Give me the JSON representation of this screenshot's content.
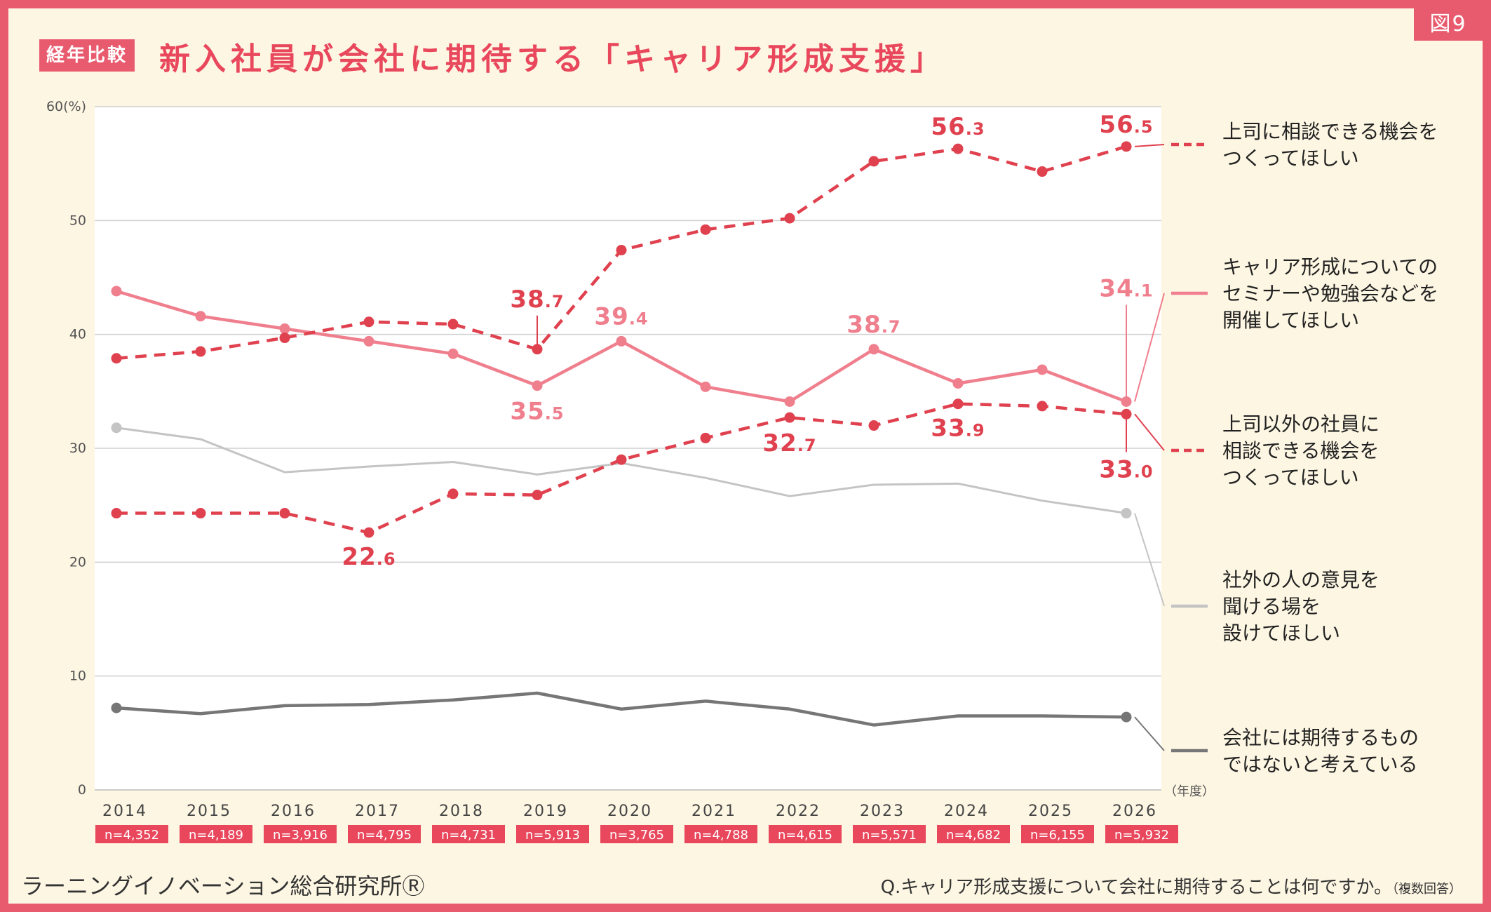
{
  "header": {
    "figure_label": "図9",
    "category_badge": "経年比較",
    "title": "新入社員が会社に期待する「キャリア形成支援」"
  },
  "footer": {
    "source": "ラーニングイノベーション総合研究所Ⓡ",
    "question": "Q.キャリア形成支援について会社に期待することは何ですか。",
    "question_note": "（複数回答）"
  },
  "colors": {
    "frame": "#e85b6e",
    "background": "#fdf6e3",
    "red_dashed": "#e0414f",
    "pink": "#f07f8e",
    "light_gray": "#c4c4c4",
    "dark_gray": "#767676"
  },
  "chart_data": {
    "type": "line",
    "y_unit_label": "(%)",
    "x_unit_label": "（年度）",
    "ylim": [
      0,
      60
    ],
    "yticks": [
      0,
      10,
      20,
      30,
      40,
      50,
      60
    ],
    "grid": true,
    "legend_placement": "right",
    "x": [
      "2014",
      "2015",
      "2016",
      "2017",
      "2018",
      "2019",
      "2020",
      "2021",
      "2022",
      "2023",
      "2024",
      "2025",
      "2026"
    ],
    "sample_sizes": [
      "n=4,352",
      "n=4,189",
      "n=3,916",
      "n=4,795",
      "n=4,731",
      "n=5,913",
      "n=3,765",
      "n=4,788",
      "n=4,615",
      "n=5,571",
      "n=4,682",
      "n=6,155",
      "n=5,932"
    ],
    "series": [
      {
        "key": "boss",
        "name": "上司に相談できる機会をつくってほしい",
        "name_lines": [
          "上司に相談できる機会を",
          "つくってほしい"
        ],
        "style": "dashed",
        "color": "#e0414f",
        "values": [
          37.9,
          38.5,
          39.7,
          41.1,
          40.9,
          38.7,
          47.4,
          49.2,
          50.2,
          55.2,
          56.3,
          54.3,
          56.5
        ],
        "labels": [
          {
            "index": 5,
            "int": "38",
            "dec": ".7"
          },
          {
            "index": 10,
            "int": "56",
            "dec": ".3"
          },
          {
            "index": 12,
            "int": "56",
            "dec": ".5"
          }
        ]
      },
      {
        "key": "seminar",
        "name": "キャリア形成についてのセミナーや勉強会などを開催してほしい",
        "name_lines": [
          "キャリア形成についての",
          "セミナーや勉強会などを",
          "開催してほしい"
        ],
        "style": "solid",
        "color": "#f07f8e",
        "values": [
          43.8,
          41.6,
          40.5,
          39.4,
          38.3,
          35.5,
          39.4,
          35.4,
          34.1,
          38.7,
          35.7,
          36.9,
          34.1
        ],
        "labels": [
          {
            "index": 5,
            "int": "35",
            "dec": ".5"
          },
          {
            "index": 6,
            "int": "39",
            "dec": ".4"
          },
          {
            "index": 9,
            "int": "38",
            "dec": ".7"
          },
          {
            "index": 12,
            "int": "34",
            "dec": ".1"
          }
        ]
      },
      {
        "key": "other_staff",
        "name": "上司以外の社員に相談できる機会をつくってほしい",
        "name_lines": [
          "上司以外の社員に",
          "相談できる機会を",
          "つくってほしい"
        ],
        "style": "dashed",
        "color": "#e0414f",
        "values": [
          24.3,
          24.3,
          24.3,
          22.6,
          26.0,
          25.9,
          29.0,
          30.9,
          32.7,
          32.0,
          33.9,
          33.7,
          33.0
        ],
        "labels": [
          {
            "index": 3,
            "int": "22",
            "dec": ".6"
          },
          {
            "index": 8,
            "int": "32",
            "dec": ".7"
          },
          {
            "index": 10,
            "int": "33",
            "dec": ".9"
          },
          {
            "index": 12,
            "int": "33",
            "dec": ".0"
          }
        ]
      },
      {
        "key": "outside",
        "name": "社外の人の意見を聞ける場を設けてほしい",
        "name_lines": [
          "社外の人の意見を",
          "聞ける場を",
          "設けてほしい"
        ],
        "style": "solid",
        "color": "#c4c4c4",
        "values": [
          31.8,
          30.8,
          27.9,
          28.4,
          28.8,
          27.7,
          28.7,
          27.4,
          25.8,
          26.8,
          26.9,
          25.4,
          24.3
        ],
        "labels": []
      },
      {
        "key": "nothing",
        "name": "会社には期待するものではないと考えている",
        "name_lines": [
          "会社には期待するもの",
          "ではないと考えている"
        ],
        "style": "solid",
        "color": "#767676",
        "values": [
          7.2,
          6.7,
          7.4,
          7.5,
          7.9,
          8.5,
          7.1,
          7.8,
          7.1,
          5.7,
          6.5,
          6.5,
          6.4
        ],
        "labels": []
      }
    ]
  }
}
